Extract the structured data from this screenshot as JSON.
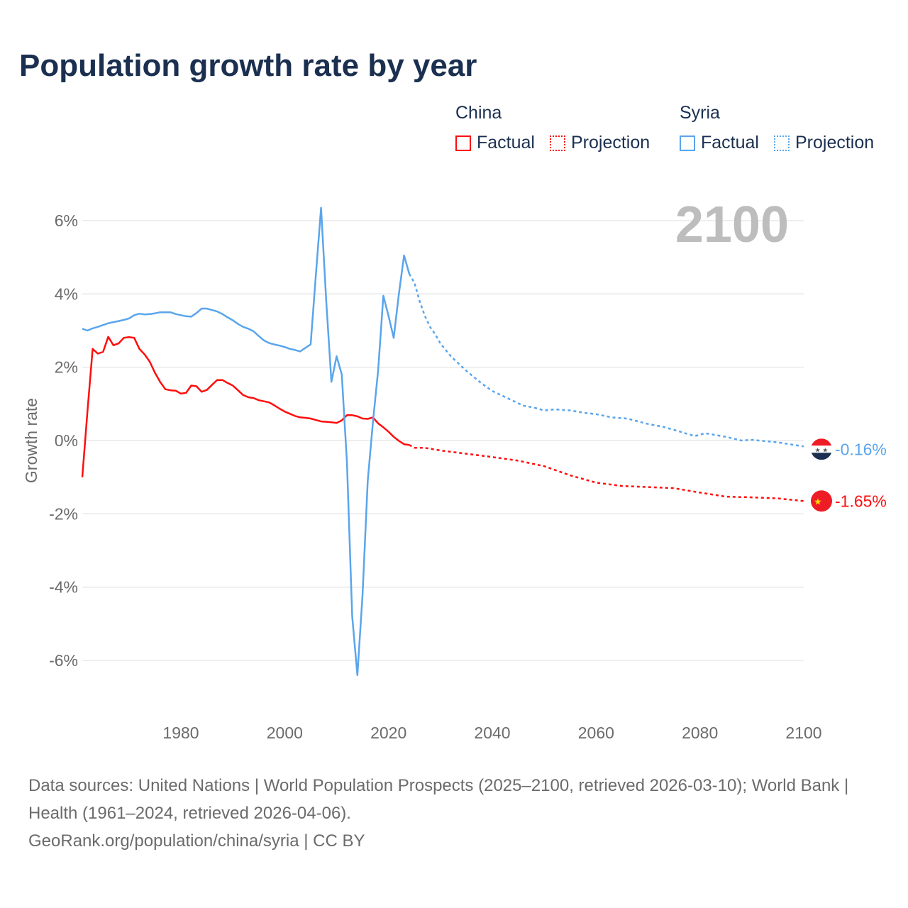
{
  "title": "Population growth rate by year",
  "year_label": "2100",
  "legend": {
    "groups": [
      {
        "name": "China",
        "color": "#ff0d0d",
        "factual": "Factual",
        "projection": "Projection"
      },
      {
        "name": "Syria",
        "color": "#5aa5ec",
        "factual": "Factual",
        "projection": "Projection"
      }
    ]
  },
  "footer": {
    "line1": "Data sources: United Nations | World Population Prospects (2025–2100, retrieved 2026-03-10); World Bank | Health (1961–2024, retrieved 2026-04-06).",
    "line2": "GeoRank.org/population/china/syria | CC BY"
  },
  "chart_data": {
    "type": "line",
    "title": "Population growth rate by year",
    "xlabel": "",
    "ylabel": "Growth rate",
    "xlim": [
      1961,
      2100
    ],
    "ylim": [
      -7,
      6.6
    ],
    "x_ticks": [
      1980,
      2000,
      2020,
      2040,
      2060,
      2080,
      2100
    ],
    "y_ticks": [
      6,
      4,
      2,
      0,
      -2,
      -4,
      -6
    ],
    "y_tick_labels": [
      "6%",
      "4%",
      "2%",
      "0%",
      "-2%",
      "-4%",
      "-6%"
    ],
    "grid": true,
    "legend_position": "top-right",
    "series": [
      {
        "name": "China",
        "color": "#ff0d0d",
        "end_label": "-1.65%",
        "factual": {
          "x": [
            1961,
            1962,
            1963,
            1964,
            1965,
            1966,
            1967,
            1968,
            1969,
            1970,
            1971,
            1972,
            1973,
            1974,
            1975,
            1976,
            1977,
            1978,
            1979,
            1980,
            1981,
            1982,
            1983,
            1984,
            1985,
            1986,
            1987,
            1988,
            1989,
            1990,
            1991,
            1992,
            1993,
            1994,
            1995,
            1996,
            1997,
            1998,
            1999,
            2000,
            2001,
            2002,
            2003,
            2004,
            2005,
            2006,
            2007,
            2008,
            2009,
            2010,
            2011,
            2012,
            2013,
            2014,
            2015,
            2016,
            2017,
            2018,
            2019,
            2020,
            2021,
            2022,
            2023,
            2024
          ],
          "y": [
            -1.0,
            0.8,
            2.5,
            2.37,
            2.42,
            2.83,
            2.6,
            2.65,
            2.8,
            2.82,
            2.8,
            2.5,
            2.35,
            2.15,
            1.85,
            1.6,
            1.4,
            1.37,
            1.36,
            1.28,
            1.3,
            1.5,
            1.48,
            1.33,
            1.38,
            1.52,
            1.65,
            1.65,
            1.57,
            1.5,
            1.37,
            1.24,
            1.18,
            1.16,
            1.1,
            1.07,
            1.04,
            0.96,
            0.87,
            0.79,
            0.73,
            0.67,
            0.63,
            0.62,
            0.6,
            0.56,
            0.52,
            0.51,
            0.5,
            0.48,
            0.55,
            0.69,
            0.69,
            0.66,
            0.6,
            0.59,
            0.63,
            0.47,
            0.36,
            0.24,
            0.1,
            -0.01,
            -0.1,
            -0.12
          ]
        },
        "projection": {
          "x": [
            2024,
            2025,
            2027,
            2030,
            2035,
            2040,
            2045,
            2050,
            2055,
            2060,
            2065,
            2070,
            2075,
            2080,
            2085,
            2090,
            2095,
            2100
          ],
          "y": [
            -0.12,
            -0.2,
            -0.2,
            -0.27,
            -0.36,
            -0.45,
            -0.55,
            -0.7,
            -0.95,
            -1.15,
            -1.24,
            -1.27,
            -1.3,
            -1.42,
            -1.53,
            -1.55,
            -1.58,
            -1.65
          ]
        }
      },
      {
        "name": "Syria",
        "color": "#5aa5ec",
        "end_label": "-0.16%",
        "factual": {
          "x": [
            1961,
            1962,
            1963,
            1964,
            1965,
            1966,
            1967,
            1968,
            1969,
            1970,
            1971,
            1972,
            1973,
            1974,
            1975,
            1976,
            1977,
            1978,
            1979,
            1980,
            1981,
            1982,
            1983,
            1984,
            1985,
            1986,
            1987,
            1988,
            1989,
            1990,
            1991,
            1992,
            1993,
            1994,
            1995,
            1996,
            1997,
            1998,
            1999,
            2000,
            2001,
            2002,
            2003,
            2004,
            2005,
            2006,
            2007,
            2008,
            2009,
            2010,
            2011,
            2012,
            2013,
            2014,
            2015,
            2016,
            2017,
            2018,
            2019,
            2020,
            2021,
            2022,
            2023,
            2024
          ],
          "y": [
            3.05,
            3.0,
            3.06,
            3.1,
            3.15,
            3.2,
            3.23,
            3.26,
            3.29,
            3.33,
            3.42,
            3.46,
            3.44,
            3.45,
            3.47,
            3.5,
            3.5,
            3.5,
            3.45,
            3.42,
            3.39,
            3.38,
            3.48,
            3.6,
            3.6,
            3.56,
            3.52,
            3.45,
            3.36,
            3.28,
            3.18,
            3.1,
            3.05,
            2.98,
            2.85,
            2.73,
            2.66,
            2.62,
            2.59,
            2.55,
            2.5,
            2.47,
            2.43,
            2.53,
            2.62,
            4.5,
            6.35,
            3.8,
            1.6,
            2.3,
            1.8,
            -0.6,
            -4.8,
            -6.4,
            -4.2,
            -1.1,
            0.5,
            1.9,
            3.95,
            3.4,
            2.8,
            4.0,
            5.05,
            4.55
          ]
        },
        "projection": {
          "x": [
            2024,
            2025,
            2026,
            2027,
            2028,
            2029,
            2030,
            2032,
            2035,
            2038,
            2040,
            2043,
            2046,
            2048,
            2050,
            2052,
            2055,
            2058,
            2060,
            2063,
            2066,
            2070,
            2073,
            2076,
            2079,
            2081,
            2085,
            2088,
            2090,
            2095,
            2100
          ],
          "y": [
            4.55,
            4.3,
            3.8,
            3.4,
            3.1,
            2.9,
            2.65,
            2.3,
            1.9,
            1.55,
            1.35,
            1.15,
            0.95,
            0.9,
            0.82,
            0.85,
            0.82,
            0.75,
            0.72,
            0.63,
            0.6,
            0.45,
            0.37,
            0.25,
            0.12,
            0.2,
            0.1,
            0.0,
            0.02,
            -0.05,
            -0.16
          ]
        }
      }
    ]
  }
}
